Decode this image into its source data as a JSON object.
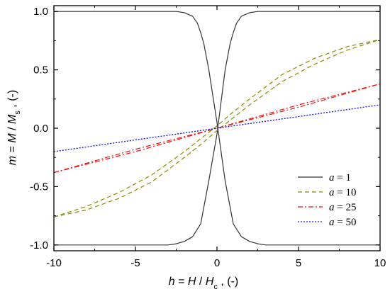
{
  "chart_data": {
    "type": "line",
    "xlabel": {
      "main": "h",
      "mid": " = ",
      "var": "H",
      "slash": " / ",
      "sym": "H",
      "sub": "c",
      "unit": " , (-)"
    },
    "ylabel": {
      "main": "m",
      "mid": " = ",
      "var": "M",
      "slash": " / ",
      "sym": "M",
      "sub": "s",
      "unit": " , (-)"
    },
    "xlim": [
      -10,
      10
    ],
    "ylim": [
      -1.05,
      1.05
    ],
    "xticks": [
      -10,
      -5,
      0,
      5,
      10
    ],
    "xtick_labels": [
      "-10",
      "-5",
      "0",
      "5",
      "10"
    ],
    "yticks": [
      -1.0,
      -0.5,
      0.0,
      0.5,
      1.0
    ],
    "ytick_labels": [
      "-1.0",
      "-0.5",
      "0.0",
      "0.5",
      "1.0"
    ],
    "grid": false,
    "legend_placement": "bottom-right",
    "series": [
      {
        "name": "a = 1",
        "legend": {
          "var": "a",
          "rest": " = 1"
        },
        "color": "#333333",
        "dash": "solid",
        "branches": [
          {
            "x": [
              -10,
              -4,
              -3,
              -2.5,
              -2,
              -1.5,
              -1.2,
              -1,
              -0.8,
              -0.5,
              0,
              0.5,
              1,
              1.5,
              2,
              2.5,
              3,
              4,
              10
            ],
            "y": [
              1.0,
              1.0,
              1.0,
              1.0,
              0.99,
              0.96,
              0.9,
              0.82,
              0.72,
              0.5,
              0.05,
              -0.45,
              -0.82,
              -0.93,
              -0.97,
              -0.99,
              -1.0,
              -1.0,
              -1.0
            ]
          },
          {
            "x": [
              -10,
              -4,
              -3,
              -2.5,
              -2,
              -1.5,
              -1,
              -0.5,
              0,
              0.5,
              0.8,
              1,
              1.2,
              1.5,
              2,
              2.5,
              3,
              4,
              10
            ],
            "y": [
              -1.0,
              -1.0,
              -1.0,
              -0.99,
              -0.97,
              -0.93,
              -0.82,
              -0.45,
              -0.05,
              0.5,
              0.72,
              0.82,
              0.9,
              0.96,
              0.99,
              1.0,
              1.0,
              1.0,
              1.0
            ]
          }
        ]
      },
      {
        "name": "a = 10",
        "legend": {
          "var": "a",
          "rest": " = 10"
        },
        "color": "#8b8b00",
        "dash": "6,4",
        "branches": [
          {
            "x": [
              -10,
              -8,
              -6,
              -4,
              -2,
              -1,
              0,
              2,
              4,
              6,
              8,
              10
            ],
            "y": [
              -0.76,
              -0.7,
              -0.6,
              -0.46,
              -0.25,
              -0.14,
              -0.02,
              0.2,
              0.4,
              0.55,
              0.67,
              0.76
            ]
          },
          {
            "x": [
              -10,
              -8,
              -6,
              -4,
              -2,
              0,
              1,
              2,
              4,
              6,
              8,
              10
            ],
            "y": [
              -0.76,
              -0.67,
              -0.55,
              -0.4,
              -0.2,
              0.02,
              0.14,
              0.25,
              0.46,
              0.6,
              0.7,
              0.76
            ]
          }
        ]
      },
      {
        "name": "a = 25",
        "legend": {
          "var": "a",
          "rest": " = 25"
        },
        "color": "#ee1111",
        "dash": "7,3,2,3",
        "branches": [
          {
            "x": [
              -10,
              -5,
              -1,
              0,
              5,
              10
            ],
            "y": [
              -0.38,
              -0.2,
              -0.04,
              0.0,
              0.18,
              0.38
            ]
          },
          {
            "x": [
              -10,
              -5,
              0,
              1,
              5,
              10
            ],
            "y": [
              -0.38,
              -0.18,
              0.0,
              0.04,
              0.2,
              0.38
            ]
          }
        ]
      },
      {
        "name": "a = 50",
        "legend": {
          "var": "a",
          "rest": " = 50"
        },
        "color": "#2222ee",
        "dash": "2,2",
        "branches": [
          {
            "x": [
              -10,
              -1,
              0,
              10
            ],
            "y": [
              -0.2,
              -0.02,
              0.0,
              0.2
            ]
          },
          {
            "x": [
              -10,
              0,
              1,
              10
            ],
            "y": [
              -0.2,
              0.0,
              0.02,
              0.2
            ]
          }
        ]
      }
    ]
  }
}
